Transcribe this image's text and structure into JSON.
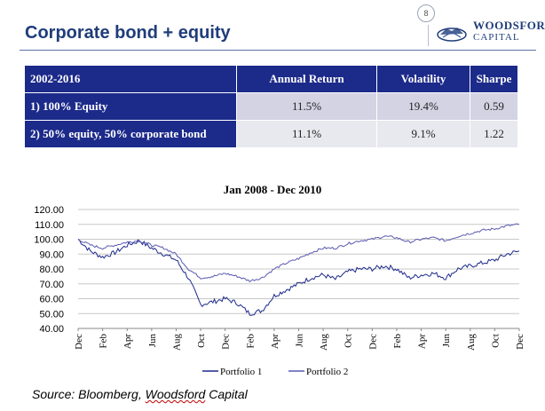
{
  "header": {
    "title": "Corporate bond + equity",
    "page_number": "8",
    "logo_line1": "WOODSFORD",
    "logo_line2": "CAPITAL"
  },
  "table": {
    "headers": [
      "2002-2016",
      "Annual Return",
      "Volatility",
      "Sharpe"
    ],
    "rows": [
      {
        "label": "1) 100% Equity",
        "annual_return": "11.5%",
        "volatility": "19.4%",
        "sharpe": "0.59"
      },
      {
        "label": "2) 50% equity, 50% corporate bond",
        "annual_return": "11.1%",
        "volatility": "9.1%",
        "sharpe": "1.22"
      }
    ]
  },
  "chart_data": {
    "type": "line",
    "title": "Jan 2008 - Dec 2010",
    "xlabel": "",
    "ylabel": "",
    "ylim": [
      40,
      120
    ],
    "yticks": [
      "40.00",
      "50.00",
      "60.00",
      "70.00",
      "80.00",
      "90.00",
      "100.00",
      "110.00",
      "120.00"
    ],
    "xticks": [
      "Dec",
      "Feb",
      "Apr",
      "Jun",
      "Aug",
      "Oct",
      "Dec",
      "Feb",
      "Apr",
      "Jun",
      "Aug",
      "Oct",
      "Dec",
      "Feb",
      "Apr",
      "Jun",
      "Aug",
      "Oct",
      "Dec"
    ],
    "grid": true,
    "legend_position": "bottom",
    "x_months": [
      0,
      1,
      2,
      3,
      4,
      5,
      6,
      7,
      8,
      9,
      10,
      11,
      12,
      13,
      14,
      15,
      16,
      17,
      18,
      19,
      20,
      21,
      22,
      23,
      24,
      25,
      26,
      27,
      28,
      29,
      30,
      31,
      32,
      33,
      34,
      35,
      36
    ],
    "series": [
      {
        "name": "Portfolio 1",
        "color": "#1c2a8a",
        "values": [
          100,
          92,
          88,
          91,
          96,
          99,
          94,
          90,
          86,
          74,
          56,
          58,
          60,
          57,
          50,
          52,
          62,
          66,
          70,
          74,
          76,
          73,
          78,
          80,
          80,
          82,
          80,
          74,
          76,
          77,
          74,
          80,
          82,
          84,
          86,
          90,
          92
        ]
      },
      {
        "name": "Portfolio 2",
        "color": "#5a5ab0",
        "values": [
          100,
          96,
          94,
          96,
          98,
          99,
          96,
          94,
          90,
          80,
          74,
          75,
          77,
          75,
          72,
          74,
          80,
          84,
          87,
          91,
          94,
          94,
          97,
          99,
          100,
          102,
          101,
          98,
          100,
          101,
          99,
          102,
          104,
          106,
          107,
          109,
          110
        ]
      }
    ]
  },
  "source": {
    "prefix": "Source: Bloomberg, ",
    "name": "Woodsford",
    "suffix": " Capital"
  }
}
